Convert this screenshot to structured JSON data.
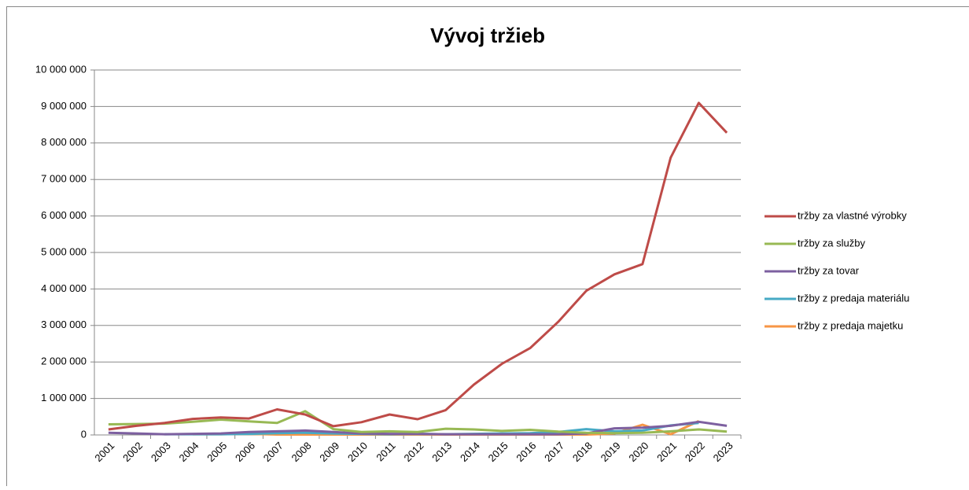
{
  "chart_data": {
    "type": "line",
    "title": "Vývoj tržieb",
    "categories": [
      "2001",
      "2002",
      "2003",
      "2004",
      "2005",
      "2006",
      "2007",
      "2008",
      "2009",
      "2010",
      "2011",
      "2012",
      "2013",
      "2014",
      "2015",
      "2016",
      "2017",
      "2018",
      "2019",
      "2020",
      "2021",
      "2022",
      "2023"
    ],
    "ylim": [
      0,
      10000000
    ],
    "yticks": [
      0,
      {
        "value": 1000000,
        "label": "1 000 000"
      },
      {
        "value": 2000000,
        "label": "2 000 000"
      },
      {
        "value": 3000000,
        "label": "3 000 000"
      },
      {
        "value": 4000000,
        "label": "4 000 000"
      },
      {
        "value": 5000000,
        "label": "5 000 000"
      },
      {
        "value": 6000000,
        "label": "6 000 000"
      },
      {
        "value": 7000000,
        "label": "7 000 000"
      },
      {
        "value": 8000000,
        "label": "8 000 000"
      },
      {
        "value": 9000000,
        "label": "9 000 000"
      },
      {
        "value": 10000000,
        "label": "10 000 000"
      }
    ],
    "grid": true,
    "legend": "right",
    "series": [
      {
        "name": "tržby za vlastné výrobky",
        "color": "#be4b48",
        "values": [
          150000,
          250000,
          330000,
          440000,
          480000,
          450000,
          700000,
          560000,
          240000,
          350000,
          560000,
          430000,
          680000,
          1380000,
          1950000,
          2380000,
          3100000,
          3950000,
          4400000,
          4680000,
          7600000,
          9100000,
          8280000
        ]
      },
      {
        "name": "tržby za služby",
        "color": "#98b954",
        "values": [
          290000,
          300000,
          310000,
          360000,
          420000,
          370000,
          330000,
          650000,
          160000,
          80000,
          100000,
          80000,
          170000,
          150000,
          110000,
          140000,
          90000,
          60000,
          50000,
          60000,
          100000,
          150000,
          90000
        ]
      },
      {
        "name": "tržby za tovar",
        "color": "#7d60a0",
        "values": [
          60000,
          40000,
          20000,
          30000,
          40000,
          80000,
          100000,
          120000,
          80000,
          40000,
          30000,
          30000,
          20000,
          20000,
          20000,
          20000,
          20000,
          40000,
          180000,
          200000,
          250000,
          360000,
          250000
        ]
      },
      {
        "name": "tržby z predaja materiálu",
        "color": "#46aac5",
        "values": [
          null,
          null,
          20000,
          20000,
          20000,
          30000,
          50000,
          60000,
          40000,
          30000,
          20000,
          30000,
          20000,
          30000,
          40000,
          50000,
          80000,
          160000,
          100000,
          120000,
          260000,
          330000,
          null
        ]
      },
      {
        "name": "tržby z predaja majetku",
        "color": "#f79646",
        "values": [
          null,
          null,
          null,
          20000,
          20000,
          30000,
          10000,
          10000,
          10000,
          10000,
          10000,
          10000,
          10000,
          10000,
          10000,
          10000,
          10000,
          10000,
          40000,
          280000,
          20000,
          380000,
          null
        ]
      }
    ]
  }
}
